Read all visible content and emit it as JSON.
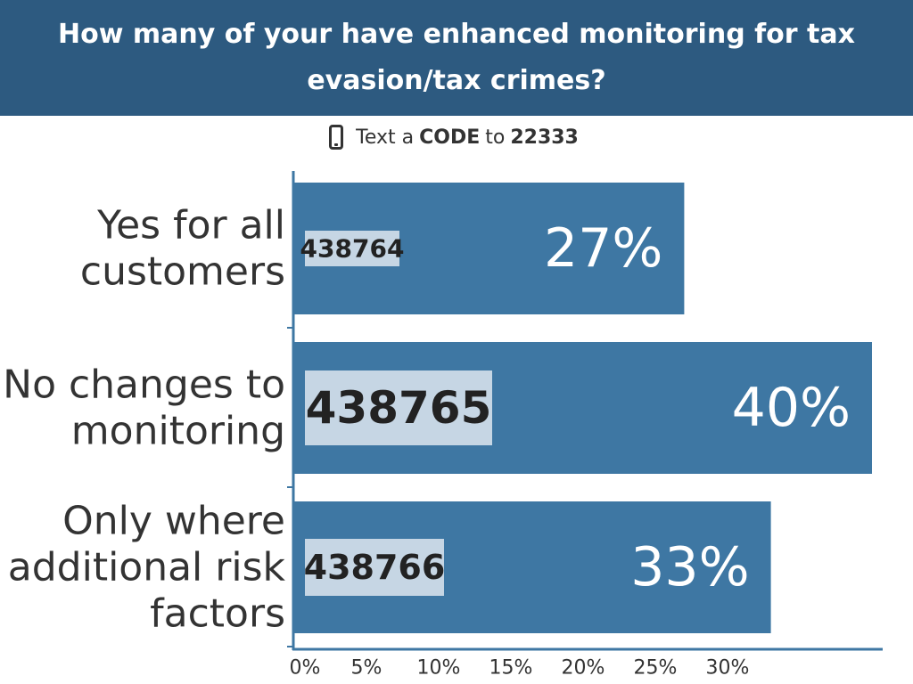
{
  "header": {
    "title": "How many of your have enhanced monitoring for tax evasion/tax crimes?"
  },
  "instruction": {
    "prefix": "Text a",
    "code_word": "CODE",
    "middle": "to",
    "number": "22333",
    "icon": "phone-icon"
  },
  "chart_data": {
    "type": "bar",
    "orientation": "horizontal",
    "title": "How many of your have enhanced monitoring for tax evasion/tax crimes?",
    "categories": [
      [
        "Yes for all",
        "customers"
      ],
      [
        "No changes to",
        "monitoring"
      ],
      [
        "Only where",
        "additional risk",
        "factors"
      ]
    ],
    "codes": [
      "438764",
      "438765",
      "438766"
    ],
    "values": [
      27,
      40,
      33
    ],
    "value_labels": [
      "27%",
      "40%",
      "33%"
    ],
    "xlim": [
      0,
      40
    ],
    "xticks": [
      0,
      5,
      10,
      15,
      20,
      25,
      30
    ],
    "xtick_labels": [
      "0%",
      "5%",
      "10%",
      "15%",
      "20%",
      "25%",
      "30%"
    ],
    "grid": false,
    "bar_color": "#3e77a3",
    "code_box_color": "#c6d6e4"
  }
}
